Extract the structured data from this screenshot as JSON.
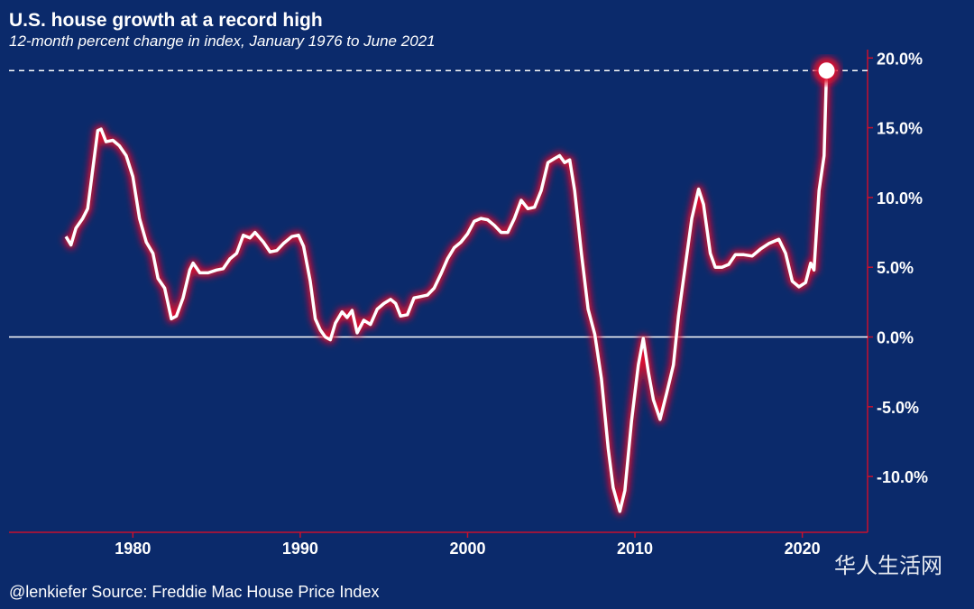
{
  "chart_data": {
    "type": "line",
    "title": "U.S. house growth at a record high",
    "subtitle": "12-month percent change in index, January 1976 to June 2021",
    "source": "@lenkiefer Source: Freddie Mac House Price Index",
    "watermark": "华人生活网",
    "color": "#ffffff",
    "glow_color": "#e0102f",
    "axis_color": "#c8102e",
    "xlim": [
      1972.6,
      2023.9
    ],
    "xticks": [
      1980,
      1990,
      2000,
      2010,
      2020
    ],
    "ylim": [
      -14,
      20.6
    ],
    "yticks": [
      {
        "value": 20,
        "label": "20.0%"
      },
      {
        "value": 15,
        "label": "15.0%"
      },
      {
        "value": 10,
        "label": "10.0%"
      },
      {
        "value": 5,
        "label": "5.0%"
      },
      {
        "value": 0,
        "label": "0.0%"
      },
      {
        "value": -5,
        "label": "-5.0%"
      },
      {
        "value": -10,
        "label": "-10.0%"
      }
    ],
    "x": [
      1976.0,
      1976.3,
      1976.6,
      1977.0,
      1977.3,
      1977.6,
      1977.9,
      1978.1,
      1978.4,
      1978.8,
      1979.2,
      1979.6,
      1980.0,
      1980.4,
      1980.8,
      1981.2,
      1981.5,
      1981.9,
      1982.3,
      1982.6,
      1983.0,
      1983.4,
      1983.6,
      1984.0,
      1984.5,
      1985.0,
      1985.4,
      1985.8,
      1986.2,
      1986.6,
      1987.0,
      1987.3,
      1987.8,
      1988.2,
      1988.6,
      1989.0,
      1989.5,
      1989.9,
      1990.2,
      1990.6,
      1990.9,
      1991.2,
      1991.5,
      1991.8,
      1992.1,
      1992.5,
      1992.8,
      1993.1,
      1993.4,
      1993.8,
      1994.2,
      1994.6,
      1995.0,
      1995.4,
      1995.7,
      1996.0,
      1996.4,
      1996.8,
      1997.2,
      1997.6,
      1998.0,
      1998.4,
      1998.8,
      1999.2,
      1999.6,
      2000.0,
      2000.4,
      2000.8,
      2001.2,
      2001.6,
      2002.0,
      2002.4,
      2002.8,
      2003.2,
      2003.6,
      2004.0,
      2004.4,
      2004.8,
      2005.2,
      2005.5,
      2005.8,
      2006.1,
      2006.4,
      2006.8,
      2007.2,
      2007.6,
      2008.0,
      2008.4,
      2008.7,
      2009.1,
      2009.4,
      2009.8,
      2010.2,
      2010.5,
      2010.8,
      2011.1,
      2011.5,
      2011.9,
      2012.3,
      2012.6,
      2013.0,
      2013.4,
      2013.8,
      2014.1,
      2014.5,
      2014.8,
      2015.2,
      2015.6,
      2016.0,
      2016.5,
      2017.0,
      2017.5,
      2018.0,
      2018.6,
      2019.0,
      2019.4,
      2019.8,
      2020.2,
      2020.5,
      2020.7,
      2021.0,
      2021.3,
      2021.45
    ],
    "values": [
      7.2,
      6.6,
      7.8,
      8.5,
      9.2,
      12.0,
      14.8,
      14.9,
      14.0,
      14.1,
      13.7,
      13.0,
      11.5,
      8.5,
      6.8,
      6.0,
      4.2,
      3.5,
      1.3,
      1.5,
      2.8,
      4.8,
      5.3,
      4.6,
      4.6,
      4.8,
      4.9,
      5.6,
      6.0,
      7.3,
      7.1,
      7.5,
      6.8,
      6.1,
      6.2,
      6.7,
      7.2,
      7.3,
      6.5,
      4.0,
      1.3,
      0.5,
      0.0,
      -0.2,
      1.0,
      1.8,
      1.4,
      1.9,
      0.3,
      1.2,
      0.9,
      2.0,
      2.4,
      2.7,
      2.4,
      1.5,
      1.6,
      2.8,
      2.9,
      3.0,
      3.5,
      4.5,
      5.6,
      6.4,
      6.8,
      7.4,
      8.3,
      8.5,
      8.4,
      8.0,
      7.5,
      7.5,
      8.5,
      9.8,
      9.2,
      9.3,
      10.5,
      12.5,
      12.8,
      13.0,
      12.5,
      12.7,
      10.5,
      6.0,
      2.0,
      0.2,
      -3.0,
      -8.0,
      -10.8,
      -12.5,
      -11.0,
      -6.0,
      -2.0,
      -0.1,
      -2.5,
      -4.5,
      -5.9,
      -4.0,
      -2.0,
      1.5,
      5.0,
      8.5,
      10.6,
      9.5,
      6.0,
      5.0,
      5.0,
      5.2,
      5.9,
      5.9,
      5.8,
      6.3,
      6.7,
      7.0,
      6.0,
      4.0,
      3.6,
      3.9,
      5.3,
      4.8,
      10.5,
      13.0,
      19.1
    ]
  }
}
